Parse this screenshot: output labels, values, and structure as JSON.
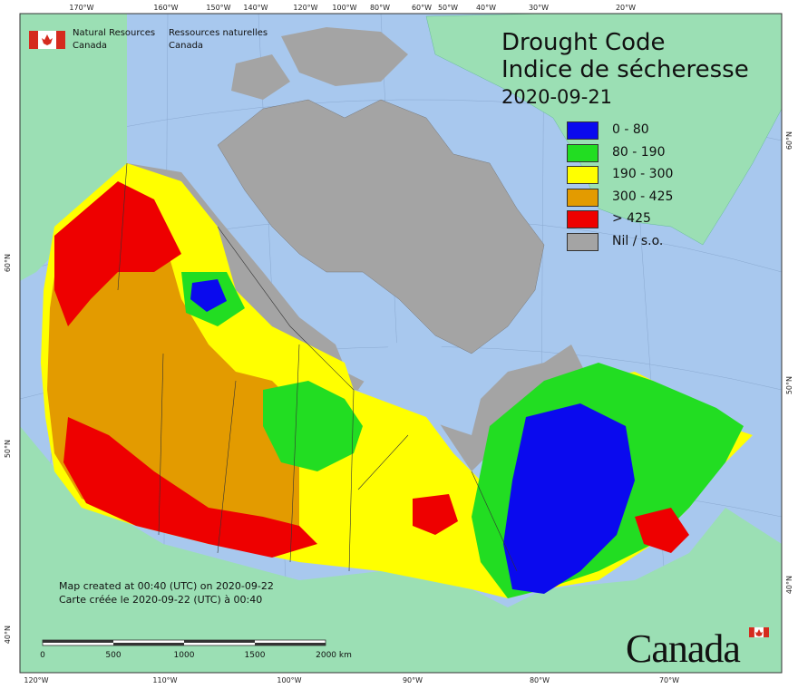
{
  "title": {
    "en": "Drought Code",
    "fr": "Indice de sécheresse",
    "date": "2020-09-21"
  },
  "agency": {
    "en_line1": "Natural Resources",
    "en_line2": "Canada",
    "fr_line1": "Ressources naturelles",
    "fr_line2": "Canada"
  },
  "legend": [
    {
      "label": "0 - 80",
      "color": "#0a0aee"
    },
    {
      "label": "80 - 190",
      "color": "#22dd22"
    },
    {
      "label": "190 - 300",
      "color": "#ffff00"
    },
    {
      "label": "300 - 425",
      "color": "#e39b00"
    },
    {
      "label": "> 425",
      "color": "#ee0000"
    },
    {
      "label": "Nil / s.o.",
      "color": "#a4a4a4"
    }
  ],
  "credit": {
    "en": "Map created at 00:40 (UTC) on 2020-09-22",
    "fr": "Carte créée le 2020-09-22 (UTC) à 00:40"
  },
  "scale": [
    "0",
    "500",
    "1000",
    "1500",
    "2000  km"
  ],
  "ticks": {
    "top": [
      "170°W",
      "160°W",
      "150°W",
      "140°W",
      "120°W",
      "100°W",
      "80°W",
      "60°W",
      "50°W",
      "40°W",
      "30°W",
      "20°W"
    ],
    "bottom": [
      "120°W",
      "110°W",
      "100°W",
      "90°W",
      "80°W",
      "70°W"
    ],
    "left": [
      "60°N",
      "50°N",
      "40°N"
    ],
    "right": [
      "60°N",
      "50°N",
      "40°N"
    ]
  },
  "wordmark": "Canada",
  "colors": {
    "ocean": "#a8c8ee",
    "land_other": "#9bdfb4"
  }
}
